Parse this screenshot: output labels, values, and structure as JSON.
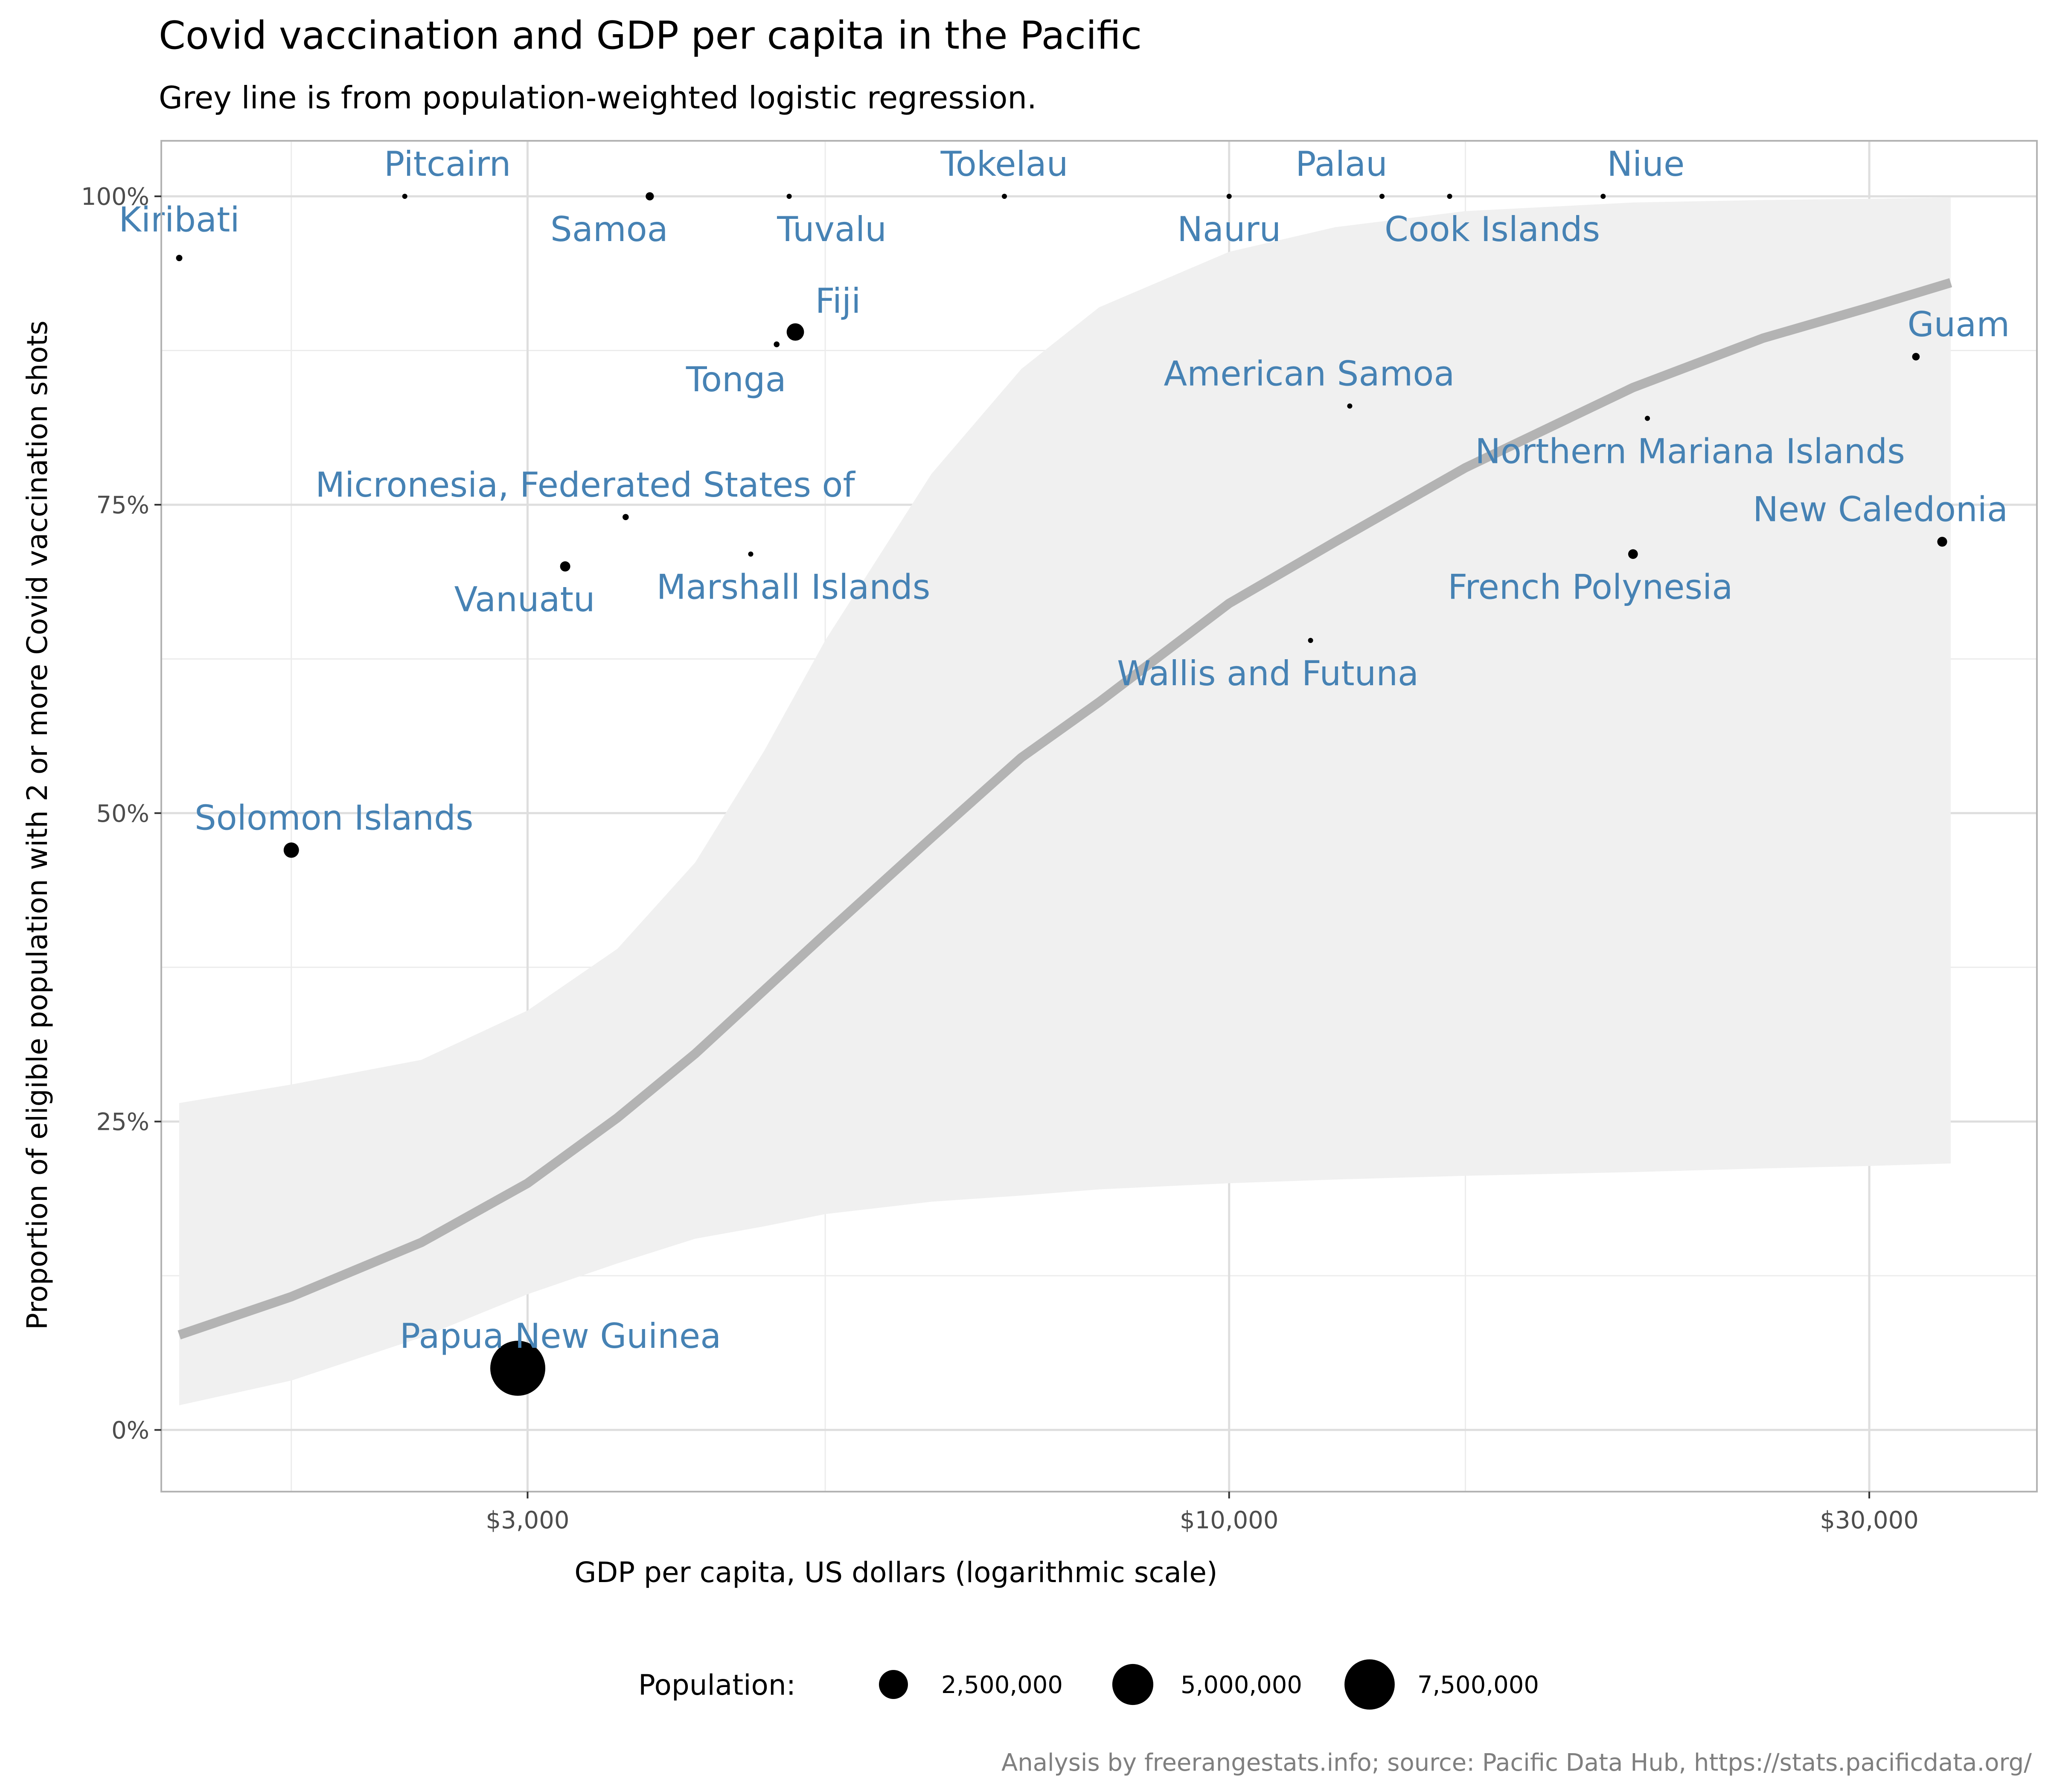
{
  "chart_data": {
    "type": "scatter",
    "title": "Covid vaccination and GDP per capita in the Pacific",
    "subtitle": "Grey line is from population-weighted logistic regression.",
    "xlabel": "GDP per capita, US dollars (logarithmic scale)",
    "ylabel": "Proportion of eligible population with 2 or more Covid vaccination shots",
    "caption": "Analysis by freerangestats.info; source: Pacific Data Hub, https://stats.pacificdata.org/",
    "x_scale": "log10",
    "xlim": [
      1600,
      40000
    ],
    "ylim": [
      -0.05,
      1.045
    ],
    "x_ticks": [
      3000,
      10000,
      30000
    ],
    "x_tick_labels": [
      "$3,000",
      "$10,000",
      "$30,000"
    ],
    "x_minor_ticks": [
      2000,
      5000,
      15000
    ],
    "y_ticks": [
      0,
      0.25,
      0.5,
      0.75,
      1.0
    ],
    "y_tick_labels": [
      "0%",
      "25%",
      "50%",
      "75%",
      "100%"
    ],
    "y_minor_ticks": [
      0.125,
      0.375,
      0.625,
      0.875
    ],
    "grid": true,
    "colors": {
      "label": "#4682b4",
      "point": "#000000",
      "fit_line": "#b3b3b3",
      "ribbon": "#f0f0f0",
      "grid_major": "#dedede",
      "grid_minor": "#ececec",
      "panel_border": "#b3b3b3",
      "axis_text": "#4d4d4d",
      "caption": "#7f7f7f"
    },
    "points": [
      {
        "name": "Kiribati",
        "x": 1650,
        "y": 0.95,
        "population": 120000
      },
      {
        "name": "Pitcairn",
        "x": 2430,
        "y": 1.0,
        "population": 50
      },
      {
        "name": "Samoa",
        "x": 3700,
        "y": 1.0,
        "population": 200000
      },
      {
        "name": "Tuvalu",
        "x": 4700,
        "y": 1.0,
        "population": 11000
      },
      {
        "name": "Tokelau",
        "x": 6800,
        "y": 1.0,
        "population": 1500
      },
      {
        "name": "Nauru",
        "x": 10000,
        "y": 1.0,
        "population": 12000
      },
      {
        "name": "Palau",
        "x": 13000,
        "y": 1.0,
        "population": 18000
      },
      {
        "name": "Cook Islands",
        "x": 14600,
        "y": 1.0,
        "population": 17000
      },
      {
        "name": "Niue",
        "x": 19000,
        "y": 1.0,
        "population": 1600
      },
      {
        "name": "Fiji",
        "x": 4750,
        "y": 0.89,
        "population": 900000
      },
      {
        "name": "Tonga",
        "x": 4600,
        "y": 0.88,
        "population": 100000
      },
      {
        "name": "Guam",
        "x": 32500,
        "y": 0.87,
        "population": 170000
      },
      {
        "name": "American Samoa",
        "x": 12300,
        "y": 0.83,
        "population": 50000
      },
      {
        "name": "Northern Mariana Islands",
        "x": 20500,
        "y": 0.82,
        "population": 50000
      },
      {
        "name": "Micronesia, Federated States of",
        "x": 3550,
        "y": 0.74,
        "population": 115000
      },
      {
        "name": "Marshall Islands",
        "x": 4400,
        "y": 0.71,
        "population": 55000
      },
      {
        "name": "New Caledonia",
        "x": 34000,
        "y": 0.72,
        "population": 290000
      },
      {
        "name": "Vanuatu",
        "x": 3200,
        "y": 0.7,
        "population": 310000
      },
      {
        "name": "French Polynesia",
        "x": 20000,
        "y": 0.71,
        "population": 280000
      },
      {
        "name": "Wallis and Futuna",
        "x": 11500,
        "y": 0.64,
        "population": 11500
      },
      {
        "name": "Solomon Islands",
        "x": 2000,
        "y": 0.47,
        "population": 700000
      },
      {
        "name": "Papua New Guinea",
        "x": 2950,
        "y": 0.05,
        "population": 9000000
      }
    ],
    "fit_line": [
      {
        "x": 1650,
        "y": 0.077
      },
      {
        "x": 2000,
        "y": 0.108
      },
      {
        "x": 2500,
        "y": 0.152
      },
      {
        "x": 3000,
        "y": 0.2
      },
      {
        "x": 3500,
        "y": 0.253
      },
      {
        "x": 4000,
        "y": 0.305
      },
      {
        "x": 5000,
        "y": 0.402
      },
      {
        "x": 6000,
        "y": 0.48
      },
      {
        "x": 7000,
        "y": 0.545
      },
      {
        "x": 8000,
        "y": 0.59
      },
      {
        "x": 10000,
        "y": 0.67
      },
      {
        "x": 12000,
        "y": 0.72
      },
      {
        "x": 15000,
        "y": 0.78
      },
      {
        "x": 20000,
        "y": 0.845
      },
      {
        "x": 25000,
        "y": 0.885
      },
      {
        "x": 30000,
        "y": 0.91
      },
      {
        "x": 34500,
        "y": 0.93
      }
    ],
    "confidence_band": [
      {
        "x": 1650,
        "low": 0.02,
        "high": 0.265
      },
      {
        "x": 2000,
        "low": 0.04,
        "high": 0.28
      },
      {
        "x": 2500,
        "low": 0.075,
        "high": 0.3
      },
      {
        "x": 3000,
        "low": 0.11,
        "high": 0.34
      },
      {
        "x": 3500,
        "low": 0.135,
        "high": 0.39
      },
      {
        "x": 4000,
        "low": 0.155,
        "high": 0.46
      },
      {
        "x": 4500,
        "low": 0.165,
        "high": 0.55
      },
      {
        "x": 5000,
        "low": 0.175,
        "high": 0.64
      },
      {
        "x": 6000,
        "low": 0.185,
        "high": 0.775
      },
      {
        "x": 7000,
        "low": 0.19,
        "high": 0.86
      },
      {
        "x": 8000,
        "low": 0.195,
        "high": 0.91
      },
      {
        "x": 10000,
        "low": 0.2,
        "high": 0.955
      },
      {
        "x": 12000,
        "low": 0.203,
        "high": 0.975
      },
      {
        "x": 15000,
        "low": 0.206,
        "high": 0.988
      },
      {
        "x": 20000,
        "low": 0.209,
        "high": 0.995
      },
      {
        "x": 25000,
        "low": 0.212,
        "high": 0.997
      },
      {
        "x": 30000,
        "low": 0.214,
        "high": 0.998
      },
      {
        "x": 34500,
        "low": 0.216,
        "high": 0.999
      }
    ],
    "legend": {
      "title": "Population:",
      "placement": "bottom",
      "entries": [
        {
          "label": "2,500,000",
          "value": 2500000
        },
        {
          "label": "5,000,000",
          "value": 5000000
        },
        {
          "label": "7,500,000",
          "value": 7500000
        }
      ]
    }
  }
}
